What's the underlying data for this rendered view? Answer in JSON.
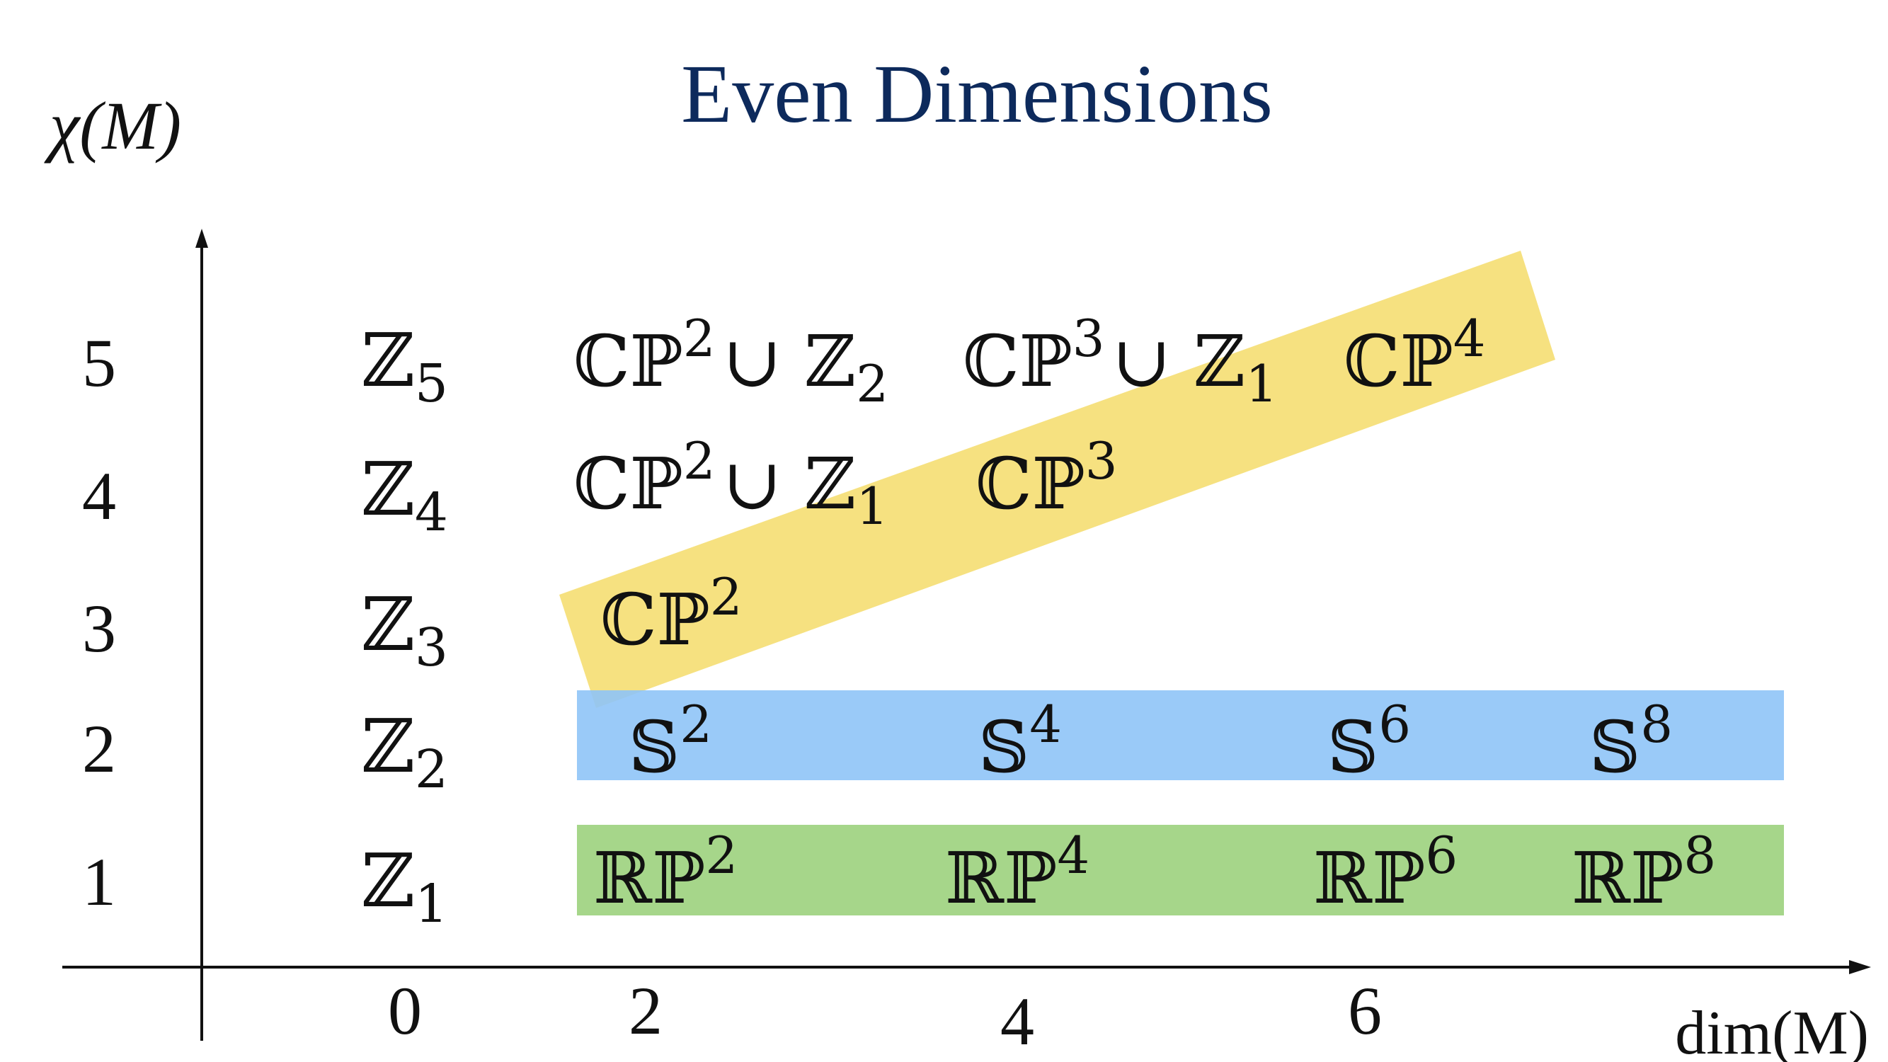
{
  "title": "Even Dimensions",
  "y_axis_label": "χ(M)",
  "x_axis_label": "dim(M)",
  "y_ticks": [
    "5",
    "4",
    "3",
    "2",
    "1"
  ],
  "x_ticks": [
    "0",
    "2",
    "4",
    "6"
  ],
  "column_zero": [
    {
      "base": "ℤ",
      "sub": "5"
    },
    {
      "base": "ℤ",
      "sub": "4"
    },
    {
      "base": "ℤ",
      "sub": "3"
    },
    {
      "base": "ℤ",
      "sub": "2"
    },
    {
      "base": "ℤ",
      "sub": "1"
    }
  ],
  "complex_projective": [
    {
      "base": "ℂℙ",
      "sup": "2",
      "union": "∪ ℤ",
      "sub": "2"
    },
    {
      "base": "ℂℙ",
      "sup": "3",
      "union": "∪ ℤ",
      "sub": "1"
    },
    {
      "base": "ℂℙ",
      "sup": "4"
    },
    {
      "base": "ℂℙ",
      "sup": "2",
      "union": "∪ ℤ",
      "sub": "1"
    },
    {
      "base": "ℂℙ",
      "sup": "3"
    },
    {
      "base": "ℂℙ",
      "sup": "2"
    }
  ],
  "spheres": [
    {
      "base": "𝕊",
      "sup": "2"
    },
    {
      "base": "𝕊",
      "sup": "4"
    },
    {
      "base": "𝕊",
      "sup": "6"
    },
    {
      "base": "𝕊",
      "sup": "8"
    }
  ],
  "real_projective": [
    {
      "base": "ℝℙ",
      "sup": "2"
    },
    {
      "base": "ℝℙ",
      "sup": "4"
    },
    {
      "base": "ℝℙ",
      "sup": "6"
    },
    {
      "base": "ℝℙ",
      "sup": "8"
    }
  ],
  "colors": {
    "title": "#0d2a5c",
    "text": "#111111",
    "yellow_band": "#f5dc6a",
    "blue_band": "#8fc4f7",
    "green_band": "#a6d68a"
  }
}
